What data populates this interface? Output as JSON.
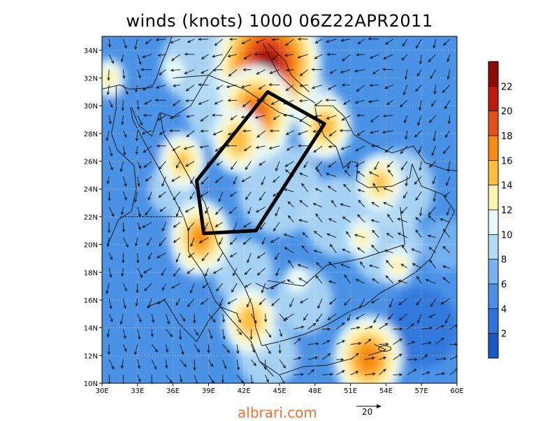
{
  "title": "winds (knots) 1000 06Z22APR2011",
  "footer": "albrari.com",
  "reference_vector": {
    "label": "20",
    "speed": 20
  },
  "map": {
    "lon_range": [
      30,
      60
    ],
    "lat_range": [
      10,
      35
    ],
    "lon_ticks": [
      "30E",
      "33E",
      "36E",
      "39E",
      "42E",
      "45E",
      "48E",
      "51E",
      "54E",
      "57E",
      "60E"
    ],
    "lat_ticks": [
      "10N",
      "12N",
      "14N",
      "16N",
      "18N",
      "20N",
      "22N",
      "24N",
      "26N",
      "28N",
      "30N",
      "32N",
      "34N"
    ],
    "grid": "dotted",
    "highlight_polygon_lonlat": [
      [
        44.0,
        31.0
      ],
      [
        48.8,
        28.7
      ],
      [
        43.0,
        21.0
      ],
      [
        38.6,
        20.8
      ],
      [
        38.0,
        24.6
      ],
      [
        44.0,
        31.0
      ]
    ]
  },
  "colorbar": {
    "labels": [
      "2",
      "4",
      "6",
      "8",
      "10",
      "12",
      "14",
      "16",
      "18",
      "20",
      "22"
    ],
    "colors": [
      "#1a58c8",
      "#2e74dc",
      "#4a92e6",
      "#78b4f0",
      "#b4dcf6",
      "#e6f8f8",
      "#fff4ac",
      "#ffbe3e",
      "#f88a10",
      "#e8501a",
      "#c01a0e",
      "#8c0c08"
    ]
  },
  "chart_data": {
    "type": "heatmap",
    "title": "winds (knots) 1000 06Z22APR2011",
    "units": "knots",
    "level": "1000",
    "valid_time": "06Z22APR2011",
    "xlim": [
      30,
      60
    ],
    "ylim": [
      10,
      35
    ],
    "levels": [
      2,
      4,
      6,
      8,
      10,
      12,
      14,
      16,
      18,
      20,
      22
    ],
    "wind_maxima": [
      {
        "lon": 44.0,
        "lat": 33.0,
        "speed": 22
      },
      {
        "lon": 43.0,
        "lat": 29.5,
        "speed": 18
      },
      {
        "lon": 41.5,
        "lat": 27.5,
        "speed": 15
      },
      {
        "lon": 36.8,
        "lat": 26.0,
        "speed": 14
      },
      {
        "lon": 38.3,
        "lat": 20.5,
        "speed": 16
      },
      {
        "lon": 42.5,
        "lat": 14.5,
        "speed": 15
      },
      {
        "lon": 48.8,
        "lat": 28.5,
        "speed": 15
      },
      {
        "lon": 53.5,
        "lat": 24.5,
        "speed": 14
      },
      {
        "lon": 52.5,
        "lat": 11.8,
        "speed": 17
      },
      {
        "lon": 52.0,
        "lat": 20.5,
        "speed": 12
      },
      {
        "lon": 55.0,
        "lat": 18.5,
        "speed": 12
      },
      {
        "lon": 46.5,
        "lat": 17.5,
        "speed": 11
      },
      {
        "lon": 30.6,
        "lat": 32.0,
        "speed": 12
      },
      {
        "lon": 36.0,
        "lat": 32.5,
        "speed": 11
      }
    ]
  }
}
